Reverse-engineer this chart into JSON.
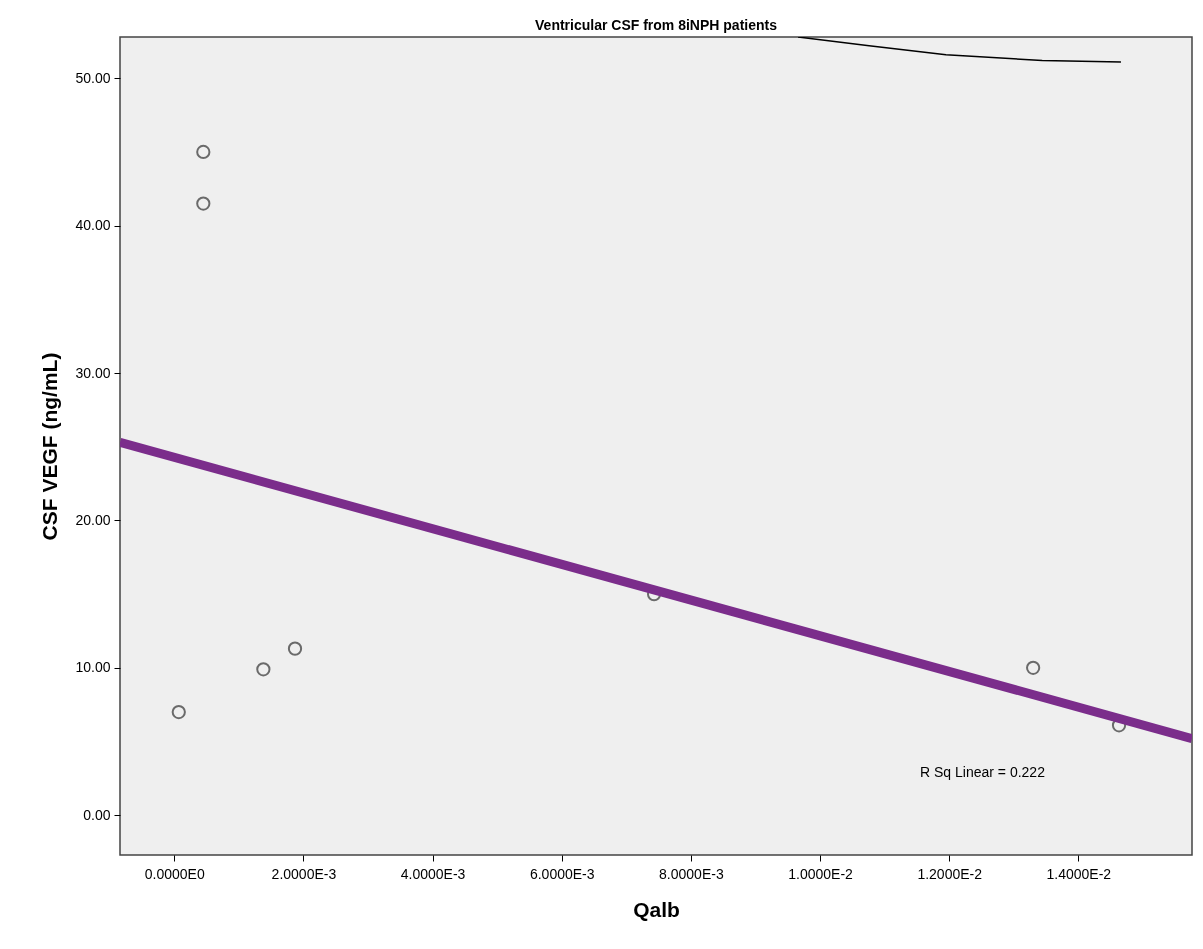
{
  "chart_data": {
    "type": "scatter",
    "title": "Ventricular CSF from 8iNPH patients",
    "xlabel": "Qalb",
    "ylabel": "CSF VEGF (ng/mL)",
    "xlim": [
      -0.00084,
      0.01576
    ],
    "ylim": [
      -2.7,
      52.8
    ],
    "xticks": [
      {
        "value": 0,
        "label": "0.0000E0"
      },
      {
        "value": 0.002,
        "label": "2.0000E-3"
      },
      {
        "value": 0.004,
        "label": "4.0000E-3"
      },
      {
        "value": 0.006,
        "label": "6.0000E-3"
      },
      {
        "value": 0.008,
        "label": "8.0000E-3"
      },
      {
        "value": 0.01,
        "label": "1.0000E-2"
      },
      {
        "value": 0.012,
        "label": "1.2000E-2"
      },
      {
        "value": 0.014,
        "label": "1.4000E-2"
      }
    ],
    "yticks": [
      {
        "value": 0,
        "label": "0.00"
      },
      {
        "value": 10,
        "label": "10.00"
      },
      {
        "value": 20,
        "label": "20.00"
      },
      {
        "value": 30,
        "label": "30.00"
      },
      {
        "value": 40,
        "label": "40.00"
      },
      {
        "value": 50,
        "label": "50.00"
      }
    ],
    "grid": false,
    "series": [
      {
        "marker": "circle",
        "color": "#333333",
        "x": [
          7e-05,
          0.00045,
          0.00045,
          0.00138,
          0.00187,
          0.00743,
          0.0133,
          0.01463
        ],
        "values": [
          7.0,
          45.0,
          41.5,
          9.9,
          11.3,
          15.0,
          10.0,
          6.1
        ]
      },
      {
        "type": "line",
        "color": "#7b2d8b",
        "x": [
          -0.00084,
          0.01576
        ],
        "values": [
          25.3,
          5.2
        ]
      },
      {
        "type": "line",
        "color": "#000000",
        "x": [
          0.00966,
          0.01076,
          0.01195,
          0.01344,
          0.01466
        ],
        "values": [
          52.8,
          52.2,
          51.6,
          51.2,
          51.1
        ]
      }
    ],
    "annotations": [
      "R Sq Linear = 0.222"
    ]
  }
}
